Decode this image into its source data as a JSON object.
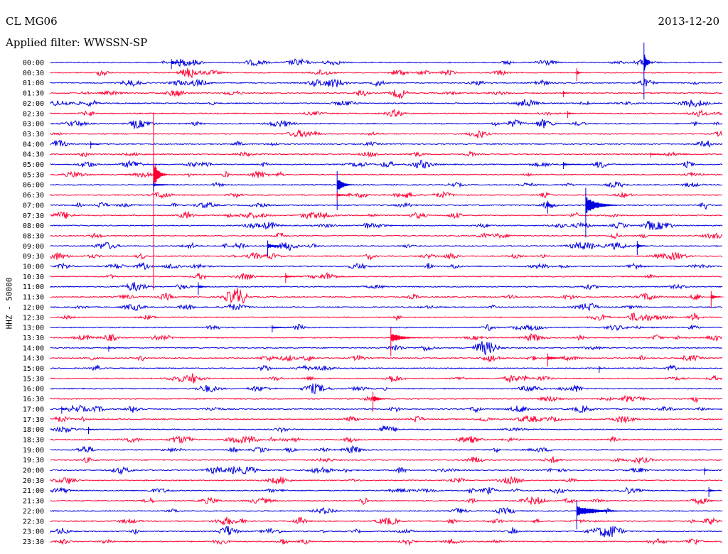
{
  "header": {
    "station": "CL MG06",
    "date": "2013-12-20",
    "filter_label": "Applied filter: WWSSN-SP"
  },
  "chart_data": {
    "type": "line",
    "title": "",
    "ylabel": "HHZ - 50000",
    "colors": {
      "odd_trace": "#0000e0",
      "even_trace": "#ff0033"
    },
    "row_labels": [
      "00:00",
      "00:30",
      "01:00",
      "01:30",
      "02:00",
      "02:30",
      "03:00",
      "03:30",
      "04:00",
      "04:30",
      "05:00",
      "05:30",
      "06:00",
      "06:30",
      "07:00",
      "07:30",
      "08:00",
      "08:30",
      "09:00",
      "09:30",
      "10:00",
      "10:30",
      "11:00",
      "11:30",
      "12:00",
      "12:30",
      "13:00",
      "13:30",
      "14:00",
      "14:30",
      "15:00",
      "15:30",
      "16:00",
      "16:30",
      "17:00",
      "17:30",
      "18:00",
      "18:30",
      "19:00",
      "19:30",
      "20:00",
      "20:30",
      "21:00",
      "21:30",
      "22:00",
      "22:30",
      "23:00",
      "23:30"
    ],
    "minutes_per_row": 30,
    "events": [
      {
        "row": 0,
        "minute": 26.5,
        "amplitude": 80,
        "duration": 0.3
      },
      {
        "row": 1,
        "minute": 23.5,
        "amplitude": 18,
        "duration": 0.3
      },
      {
        "row": 0,
        "minute": 5.4,
        "amplitude": 14,
        "duration": 1.2
      },
      {
        "row": 5,
        "minute": 23.1,
        "amplitude": 10,
        "duration": 0.8
      },
      {
        "row": 3,
        "minute": 22.9,
        "amplitude": 9,
        "duration": 0.6
      },
      {
        "row": 8,
        "minute": 1.8,
        "amplitude": 10,
        "duration": 1.0
      },
      {
        "row": 10,
        "minute": 22.9,
        "amplitude": 10,
        "duration": 1.6
      },
      {
        "row": 9,
        "minute": 26.8,
        "amplitude": 7,
        "duration": 1.6
      },
      {
        "row": 11,
        "minute": 4.6,
        "amplitude": 250,
        "duration": 0.6
      },
      {
        "row": 12,
        "minute": 4.6,
        "amplitude": 14,
        "duration": 1.4
      },
      {
        "row": 12,
        "minute": 12.8,
        "amplitude": 55,
        "duration": 0.8
      },
      {
        "row": 13,
        "minute": 12.8,
        "amplitude": 12,
        "duration": 1.2
      },
      {
        "row": 14,
        "minute": 23.9,
        "amplitude": 70,
        "duration": 1.5
      },
      {
        "row": 14,
        "minute": 22.2,
        "amplitude": 18,
        "duration": 0.5
      },
      {
        "row": 18,
        "minute": 9.7,
        "amplitude": 22,
        "duration": 1.0
      },
      {
        "row": 18,
        "minute": 26.2,
        "amplitude": 20,
        "duration": 0.6
      },
      {
        "row": 21,
        "minute": 10.5,
        "amplitude": 14,
        "duration": 0.8
      },
      {
        "row": 22,
        "minute": 6.6,
        "amplitude": 18,
        "duration": 0.6
      },
      {
        "row": 23,
        "minute": 29.5,
        "amplitude": 24,
        "duration": 0.6
      },
      {
        "row": 26,
        "minute": 9.9,
        "amplitude": 10,
        "duration": 1.6
      },
      {
        "row": 27,
        "minute": 15.2,
        "amplitude": 40,
        "duration": 1.4
      },
      {
        "row": 28,
        "minute": 2.6,
        "amplitude": 8,
        "duration": 0.8
      },
      {
        "row": 29,
        "minute": 22.2,
        "amplitude": 18,
        "duration": 1.0
      },
      {
        "row": 30,
        "minute": 24.5,
        "amplitude": 10,
        "duration": 0.4
      },
      {
        "row": 33,
        "minute": 14.4,
        "amplitude": 28,
        "duration": 0.8
      },
      {
        "row": 34,
        "minute": 0.5,
        "amplitude": 10,
        "duration": 0.6
      },
      {
        "row": 36,
        "minute": 1.7,
        "amplitude": 10,
        "duration": 0.4
      },
      {
        "row": 40,
        "minute": 29.2,
        "amplitude": 10,
        "duration": 0.5
      },
      {
        "row": 42,
        "minute": 29.4,
        "amplitude": 14,
        "duration": 0.6
      },
      {
        "row": 44,
        "minute": 23.5,
        "amplitude": 40,
        "duration": 2.5
      }
    ]
  }
}
